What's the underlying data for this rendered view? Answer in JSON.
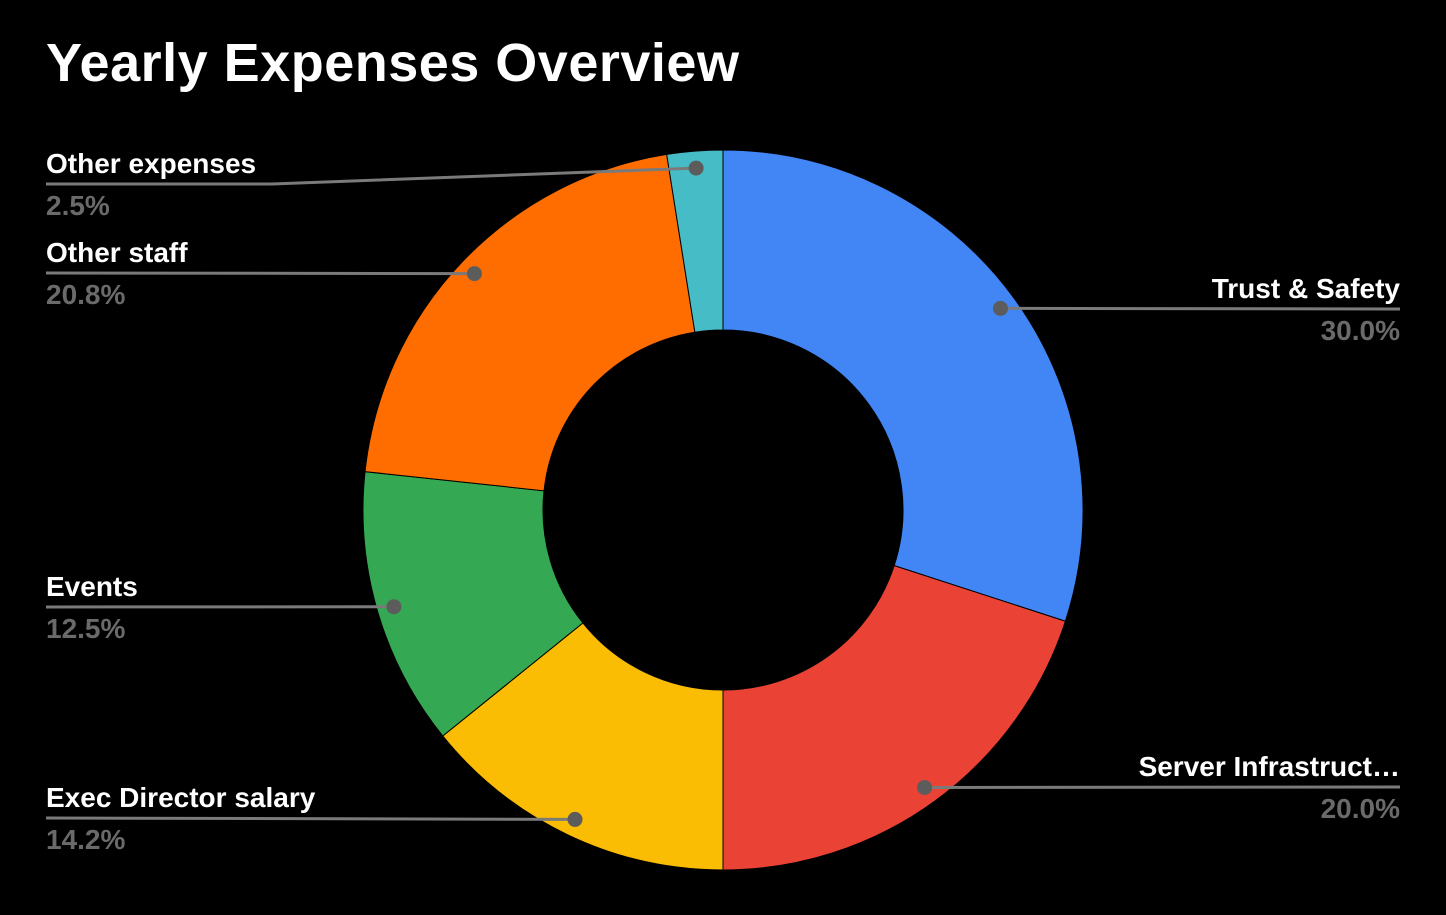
{
  "title": "Yearly Expenses Overview",
  "chart_data": {
    "type": "pie",
    "subtype": "donut",
    "title": "Yearly Expenses Overview",
    "unit": "percent",
    "start_angle_deg": 0,
    "direction": "clockwise",
    "inner_radius_ratio": 0.5,
    "legend_position": "labeled-callouts",
    "background_color": "#000000",
    "title_color": "#ffffff",
    "label_color": "#ffffff",
    "percent_color": "#6a6a6a",
    "leader_line_color": "#7a7a7a",
    "leader_dot_color": "#5c5c5c",
    "slices": [
      {
        "label": "Trust & Safety",
        "value": 30.0,
        "percent_label": "30.0%",
        "color": "#4285F4",
        "label_side": "right"
      },
      {
        "label": "Server Infrastruct…",
        "value": 20.0,
        "percent_label": "20.0%",
        "color": "#EA4335",
        "label_side": "right"
      },
      {
        "label": "Exec Director salary",
        "value": 14.2,
        "percent_label": "14.2%",
        "color": "#FBBC04",
        "label_side": "left"
      },
      {
        "label": "Events",
        "value": 12.5,
        "percent_label": "12.5%",
        "color": "#34A853",
        "label_side": "left"
      },
      {
        "label": "Other staff",
        "value": 20.8,
        "percent_label": "20.8%",
        "color": "#FF6D00",
        "label_side": "left"
      },
      {
        "label": "Other expenses",
        "value": 2.5,
        "percent_label": "2.5%",
        "color": "#46BDC6",
        "label_side": "left"
      }
    ]
  }
}
